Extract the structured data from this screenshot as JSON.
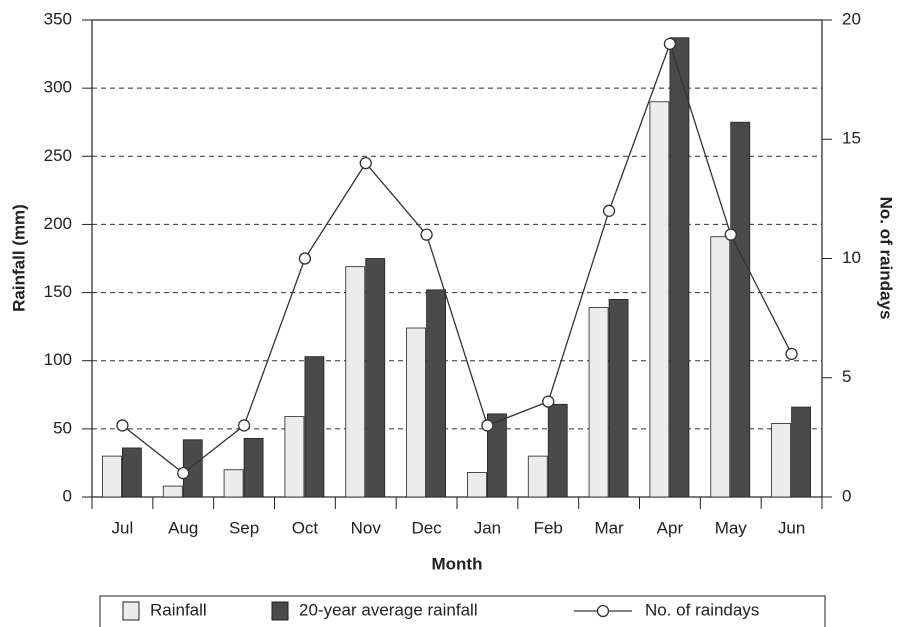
{
  "chart_data": {
    "type": "bar",
    "categories": [
      "Jul",
      "Aug",
      "Sep",
      "Oct",
      "Nov",
      "Dec",
      "Jan",
      "Feb",
      "Mar",
      "Apr",
      "May",
      "Jun"
    ],
    "series": [
      {
        "name": "Rainfall",
        "color": "#ececec",
        "values": [
          30,
          8,
          20,
          59,
          169,
          124,
          18,
          30,
          139,
          290,
          191,
          54
        ]
      },
      {
        "name": "20-year average rainfall",
        "color": "#4a4a4a",
        "values": [
          36,
          42,
          43,
          103,
          175,
          152,
          61,
          68,
          145,
          337,
          275,
          66
        ]
      },
      {
        "name": "No. of raindays",
        "type": "line",
        "axis": "y2",
        "color": "#333333",
        "values": [
          3,
          1,
          3,
          10,
          14,
          11,
          3,
          4,
          12,
          19,
          11,
          6
        ]
      }
    ],
    "x_label": "Month",
    "y_label": "Rainfall (mm)",
    "y2_label": "No. of raindays",
    "ylim": [
      0,
      350
    ],
    "yticks": [
      0,
      50,
      100,
      150,
      200,
      250,
      300,
      350
    ],
    "y2lim": [
      0,
      20
    ],
    "y2ticks": [
      0,
      5,
      10,
      15,
      20
    ],
    "grid": true,
    "legend": "bottom"
  }
}
